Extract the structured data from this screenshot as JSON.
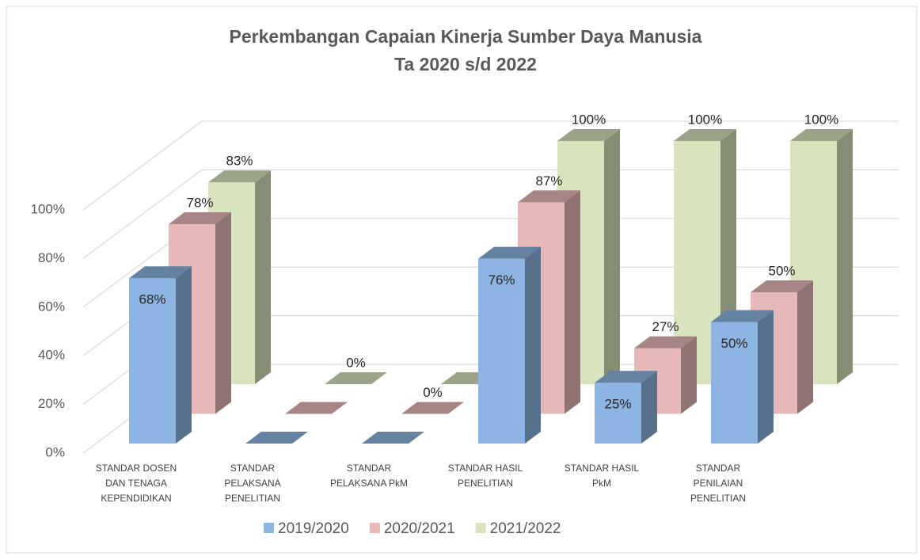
{
  "chart_data": {
    "type": "bar3d",
    "title": "Perkembangan Capaian Kinerja Sumber Daya Manusia",
    "subtitle": "Ta 2020 s/d 2022",
    "categories": [
      "STANDAR DOSEN DAN TENAGA KEPENDIDIKAN",
      "STANDAR PELAKSANA PENELITIAN",
      "STANDAR PELAKSANA PkM",
      "STANDAR HASIL PENELITIAN",
      "STANDAR HASIL PkM",
      "STANDAR PENILAIAN PENELITIAN"
    ],
    "series": [
      {
        "name": "2019/2020",
        "color": "#8db4e2",
        "values": [
          68,
          0,
          0,
          76,
          25,
          50
        ],
        "value_labels": [
          "68%",
          null,
          null,
          "76%",
          "25%",
          "50%"
        ]
      },
      {
        "name": "2020/2021",
        "color": "#e6b9b8",
        "values": [
          78,
          0,
          0,
          87,
          27,
          50
        ],
        "value_labels": [
          "78%",
          null,
          "0%",
          "87%",
          "27%",
          "50%"
        ]
      },
      {
        "name": "2021/2022",
        "color": "#d7e4bd",
        "values": [
          83,
          0,
          0,
          100,
          100,
          100
        ],
        "value_labels": [
          "83%",
          "0%",
          null,
          "100%",
          "100%",
          "100%"
        ]
      }
    ],
    "ylim": [
      0,
      100
    ],
    "yticks": [
      {
        "value": 0,
        "label": "0%"
      },
      {
        "value": 20,
        "label": "20%"
      },
      {
        "value": 40,
        "label": "40%"
      },
      {
        "value": 60,
        "label": "60%"
      },
      {
        "value": 80,
        "label": "80%"
      },
      {
        "value": 100,
        "label": "100%"
      }
    ],
    "grid": true,
    "legend": "bottom"
  }
}
